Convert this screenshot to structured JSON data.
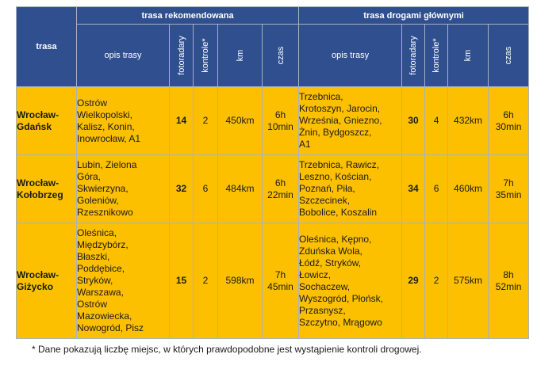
{
  "header": {
    "col_trasa": "trasa",
    "group_recommended": "trasa rekomendowana",
    "group_main_roads": "trasa drogami głównymi",
    "col_opis": "opis trasy",
    "col_fotoradary": "fotoradary",
    "col_kontrole": "kontrole*",
    "col_km": "km",
    "col_czas": "czas"
  },
  "rows": [
    {
      "route": [
        "Wrocław-",
        "Gdańsk"
      ],
      "rec": {
        "opis": [
          "Ostrów",
          "Wielkopolski,",
          "Kalisz, Konin,",
          "Inowrocław, A1"
        ],
        "fotoradary": "14",
        "kontrole": "2",
        "km": "450km",
        "czas": [
          "6h",
          "10min"
        ]
      },
      "main": {
        "opis": [
          "Trzebnica,",
          "Krotoszyn, Jarocin,",
          "Września, Gniezno,",
          "Żnin, Bydgoszcz,",
          "A1"
        ],
        "fotoradary": "30",
        "kontrole": "4",
        "km": "432km",
        "czas": [
          "6h",
          "30min"
        ]
      }
    },
    {
      "route": [
        "Wrocław-",
        "Kołobrzeg"
      ],
      "rec": {
        "opis": [
          "Lubin, Zielona",
          "Góra,",
          "Skwierzyna,",
          "Goleniów,",
          "Rzesznikowo"
        ],
        "fotoradary": "32",
        "kontrole": "6",
        "km": "484km",
        "czas": [
          "6h",
          "22min"
        ]
      },
      "main": {
        "opis": [
          "Trzebnica, Rawicz,",
          "Leszno, Kościan,",
          "Poznań, Piła,",
          "Szczecinek,",
          "Bobolice, Koszalin"
        ],
        "fotoradary": "34",
        "kontrole": "6",
        "km": "460km",
        "czas": [
          "7h",
          "35min"
        ]
      }
    },
    {
      "route": [
        "Wrocław-",
        "Giżycko"
      ],
      "rec": {
        "opis": [
          "Oleśnica,",
          "Międzybórz,",
          "Błaszki,",
          "Poddębice,",
          "Stryków,",
          "Warszawa,",
          "Ostrów",
          "Mazowiecka,",
          "Nowogród, Pisz"
        ],
        "fotoradary": "15",
        "kontrole": "2",
        "km": "598km",
        "czas": [
          "7h",
          "45min"
        ]
      },
      "main": {
        "opis": [
          "Oleśnica, Kępno,",
          "Zduńska Wola,",
          "Łódź, Stryków,",
          "Łowicz,",
          "Sochaczew,",
          "Wyszogród, Płońsk,",
          "Przasnysz,",
          "Szczytno, Mrągowo"
        ],
        "fotoradary": "29",
        "kontrole": "2",
        "km": "575km",
        "czas": [
          "8h",
          "52min"
        ]
      }
    }
  ],
  "footnote": "* Dane pokazują liczbę miejsc, w których prawdopodobne jest wystąpienie kontroli drogowej."
}
